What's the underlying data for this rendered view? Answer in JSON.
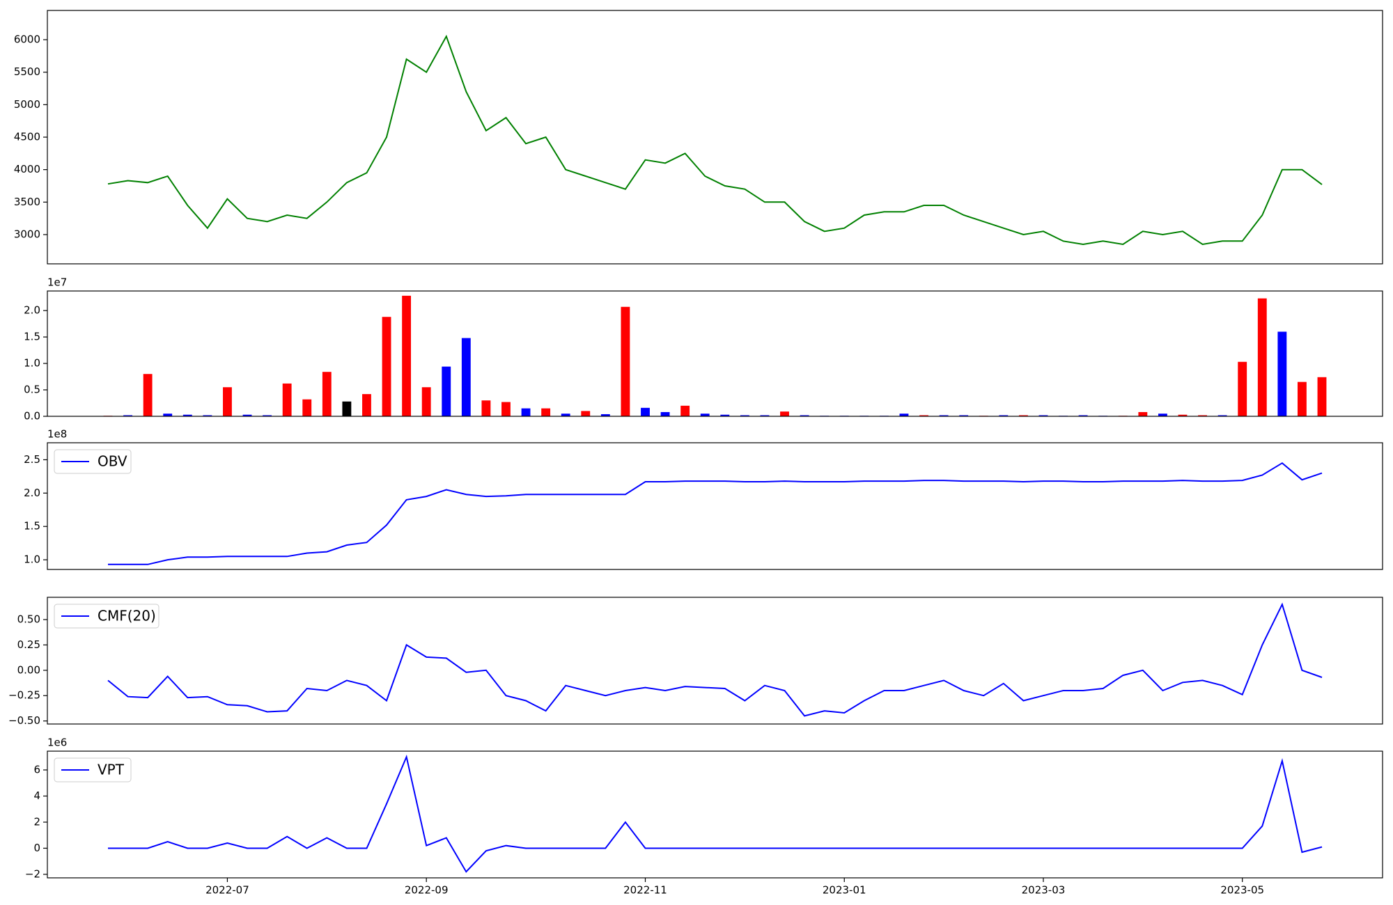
{
  "chart_data": [
    {
      "type": "line",
      "ylim": [
        2550,
        6450
      ],
      "yticks": [
        3000,
        3500,
        4000,
        4500,
        5000,
        5500,
        6000
      ],
      "series": [
        {
          "color": "green",
          "values": [
            3780,
            3830,
            3800,
            3900,
            3450,
            3100,
            3550,
            3250,
            3200,
            3300,
            3250,
            3500,
            3800,
            3950,
            4500,
            5700,
            5500,
            6050,
            5200,
            4600,
            4800,
            4400,
            4500,
            4000,
            3900,
            3800,
            3700,
            4150,
            4100,
            4250,
            3900,
            3750,
            3700,
            3500,
            3500,
            3200,
            3050,
            3100,
            3300,
            3350,
            3350,
            3450,
            3450,
            3300,
            3200,
            3100,
            3000,
            3050,
            2900,
            2850,
            2900,
            2850,
            3050,
            3000,
            3050,
            2850,
            2900,
            2900,
            3300,
            4000,
            4000,
            3770
          ]
        }
      ]
    },
    {
      "type": "bar",
      "offset_text": "1e7",
      "ylim": [
        0,
        23700000
      ],
      "yticks": [
        {
          "value": 0,
          "label": "0.0"
        },
        {
          "value": 5000000,
          "label": "0.5"
        },
        {
          "value": 10000000,
          "label": "1.0"
        },
        {
          "value": 15000000,
          "label": "1.5"
        },
        {
          "value": 20000000,
          "label": "2.0"
        }
      ],
      "values": [
        100000,
        200000,
        8000000,
        500000,
        300000,
        200000,
        5500000,
        300000,
        200000,
        6200000,
        3200000,
        8400000,
        2800000,
        4200000,
        18800000,
        22800000,
        5500000,
        9400000,
        14800000,
        3000000,
        2700000,
        1500000,
        1500000,
        500000,
        1000000,
        400000,
        20700000,
        1600000,
        800000,
        2000000,
        500000,
        300000,
        200000,
        200000,
        900000,
        200000,
        100000,
        100000,
        100000,
        100000,
        500000,
        200000,
        200000,
        200000,
        100000,
        200000,
        200000,
        200000,
        100000,
        200000,
        100000,
        100000,
        800000,
        500000,
        300000,
        200000,
        200000,
        10300000,
        22300000,
        16000000,
        6500000,
        7400000
      ],
      "colors": [
        "red",
        "blue",
        "red",
        "blue",
        "blue",
        "blue",
        "red",
        "blue",
        "blue",
        "red",
        "red",
        "red",
        "black",
        "red",
        "red",
        "red",
        "red",
        "blue",
        "blue",
        "red",
        "red",
        "blue",
        "red",
        "blue",
        "red",
        "blue",
        "red",
        "blue",
        "blue",
        "red",
        "blue",
        "blue",
        "blue",
        "blue",
        "red",
        "blue",
        "blue",
        "blue",
        "blue",
        "blue",
        "blue",
        "red",
        "blue",
        "blue",
        "red",
        "blue",
        "red",
        "blue",
        "blue",
        "blue",
        "blue",
        "red",
        "red",
        "blue",
        "red",
        "red",
        "blue",
        "red",
        "red",
        "blue",
        "red",
        "red"
      ]
    },
    {
      "type": "line",
      "offset_text": "1e8",
      "legend": "upper left",
      "ylim": [
        85500000,
        275500000
      ],
      "yticks": [
        {
          "value": 100000000,
          "label": "1.0"
        },
        {
          "value": 150000000,
          "label": "1.5"
        },
        {
          "value": 200000000,
          "label": "2.0"
        },
        {
          "value": 250000000,
          "label": "2.5"
        }
      ],
      "series": [
        {
          "name": "OBV",
          "color": "blue",
          "values": [
            93000000,
            93000000,
            93000000,
            100000000,
            104000000,
            104000000,
            105000000,
            105000000,
            105000000,
            105000000,
            110000000,
            112000000,
            122000000,
            126000000,
            152000000,
            190000000,
            195000000,
            205000000,
            198000000,
            195000000,
            196000000,
            198000000,
            198000000,
            198000000,
            198000000,
            198000000,
            198000000,
            217000000,
            217000000,
            218000000,
            218000000,
            218000000,
            217000000,
            217000000,
            218000000,
            217000000,
            217000000,
            217000000,
            218000000,
            218000000,
            218000000,
            219000000,
            219000000,
            218000000,
            218000000,
            218000000,
            217000000,
            218000000,
            218000000,
            217000000,
            217000000,
            218000000,
            218000000,
            218000000,
            219000000,
            218000000,
            218000000,
            219000000,
            227000000,
            245000000,
            220000000,
            230000000
          ]
        }
      ]
    },
    {
      "type": "line",
      "legend": "upper left",
      "ylim": [
        -0.53,
        0.72
      ],
      "yticks": [
        {
          "value": -0.5,
          "label": "−0.50"
        },
        {
          "value": -0.25,
          "label": "−0.25"
        },
        {
          "value": 0,
          "label": "0.00"
        },
        {
          "value": 0.25,
          "label": "0.25"
        },
        {
          "value": 0.5,
          "label": "0.50"
        }
      ],
      "series": [
        {
          "name": "CMF(20)",
          "color": "blue",
          "values": [
            -0.1,
            -0.26,
            -0.27,
            -0.06,
            -0.27,
            -0.26,
            -0.34,
            -0.35,
            -0.41,
            -0.4,
            -0.18,
            -0.2,
            -0.1,
            -0.15,
            -0.3,
            0.25,
            0.13,
            0.12,
            -0.02,
            0.0,
            -0.25,
            -0.3,
            -0.4,
            -0.15,
            -0.2,
            -0.25,
            -0.2,
            -0.17,
            -0.2,
            -0.16,
            -0.17,
            -0.18,
            -0.3,
            -0.15,
            -0.2,
            -0.45,
            -0.4,
            -0.42,
            -0.3,
            -0.2,
            -0.2,
            -0.15,
            -0.1,
            -0.2,
            -0.25,
            -0.13,
            -0.3,
            -0.25,
            -0.2,
            -0.2,
            -0.18,
            -0.05,
            0.0,
            -0.2,
            -0.12,
            -0.1,
            -0.15,
            -0.24,
            0.25,
            0.65,
            0.0,
            -0.07
          ]
        }
      ]
    },
    {
      "type": "line",
      "offset_text": "1e6",
      "legend": "upper left",
      "ylim": [
        -2270000,
        7440000
      ],
      "yticks": [
        {
          "value": -2000000,
          "label": "−2"
        },
        0,
        {
          "value": 2000000,
          "label": "2"
        },
        {
          "value": 4000000,
          "label": "4"
        },
        {
          "value": 6000000,
          "label": "6"
        }
      ],
      "categories": [
        null,
        null,
        null,
        null,
        null,
        null,
        "2022-07",
        null,
        null,
        null,
        null,
        null,
        null,
        null,
        null,
        null,
        "2022-09",
        null,
        null,
        null,
        null,
        null,
        null,
        null,
        null,
        null,
        null,
        "2022-11",
        null,
        null,
        null,
        null,
        null,
        null,
        null,
        null,
        null,
        "2023-01",
        null,
        null,
        null,
        null,
        null,
        null,
        null,
        null,
        null,
        "2023-03",
        null,
        null,
        null,
        null,
        null,
        null,
        null,
        null,
        null,
        "2023-05",
        null,
        null,
        null,
        null
      ],
      "series": [
        {
          "name": "VPT",
          "color": "blue",
          "values": [
            0,
            0,
            0,
            500000,
            0,
            0,
            400000,
            0,
            0,
            900000,
            0,
            800000,
            0,
            0,
            3400000,
            7000000,
            200000,
            800000,
            -1800000,
            -200000,
            200000,
            0,
            0,
            0,
            0,
            0,
            2000000,
            0,
            0,
            0,
            0,
            0,
            0,
            0,
            0,
            0,
            0,
            0,
            0,
            0,
            0,
            0,
            0,
            0,
            0,
            0,
            0,
            0,
            0,
            0,
            0,
            0,
            0,
            0,
            0,
            0,
            0,
            0,
            1700000,
            6700000,
            -300000,
            100000
          ]
        }
      ]
    }
  ]
}
